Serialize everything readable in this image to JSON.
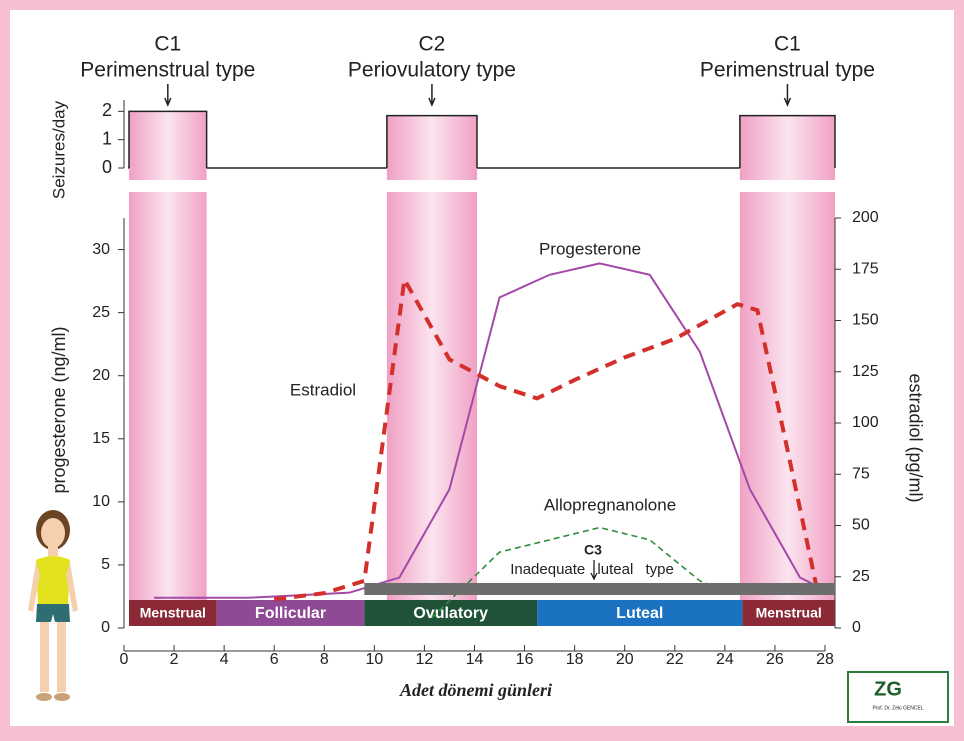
{
  "chart_data": [
    {
      "type": "step",
      "ylabel": "Seizures/day",
      "ylim": [
        0,
        2.4
      ],
      "yticks": [
        0,
        1,
        2
      ],
      "color": "#f3a3c6",
      "bands": [
        {
          "code": "C1",
          "label": "Perimenstrual type",
          "start": 0.2,
          "end": 3.3,
          "value": 2
        },
        {
          "code": "C2",
          "label": "Periovulatory type",
          "start": 10.5,
          "end": 14.1,
          "value": 1.85
        },
        {
          "code": "C1",
          "label": "Perimenstrual type",
          "start": 24.6,
          "end": 28.4,
          "value": 1.85
        }
      ]
    },
    {
      "type": "line",
      "xlabel": "Adet dönemi günleri",
      "ylabel": "progesterone (ng/ml)",
      "y2label": "estradiol (pg/ml)",
      "xlim": [
        0,
        28
      ],
      "xticks": [
        0,
        2,
        4,
        6,
        8,
        10,
        12,
        14,
        16,
        18,
        20,
        22,
        24,
        26,
        28
      ],
      "ylim": [
        0,
        32.5
      ],
      "yticks": [
        0,
        5,
        10,
        15,
        20,
        25,
        30
      ],
      "y2lim": [
        0,
        200
      ],
      "y2ticks": [
        0,
        25,
        50,
        75,
        100,
        125,
        150,
        175,
        200
      ],
      "series": [
        {
          "name": "Progesterone",
          "color": "#a34aa8",
          "dashed": false,
          "x": [
            1.2,
            3,
            5,
            7,
            9,
            11,
            13,
            15,
            17,
            19,
            21,
            23,
            25,
            27,
            28
          ],
          "values": [
            2.4,
            2.4,
            2.4,
            2.6,
            2.8,
            4,
            11,
            26.2,
            28,
            28.9,
            28,
            21.9,
            11,
            4,
            3
          ]
        },
        {
          "name": "Estradiol",
          "color": "#d3302c",
          "dashed": true,
          "axis": "y2",
          "x": [
            6,
            8,
            9.6,
            11.2,
            13,
            15,
            16.5,
            18,
            20,
            22,
            24.5,
            25.3,
            26.5,
            27.7
          ],
          "values": [
            14,
            17,
            23,
            170,
            131,
            118,
            112,
            121,
            132,
            141,
            158,
            155,
            87,
            18
          ]
        },
        {
          "name": "Allopregnanolone",
          "color": "#2f8c3c",
          "dashed": true,
          "axis": "y2",
          "x": [
            12.3,
            15,
            17,
            19,
            21,
            23,
            24
          ],
          "values": [
            5,
            37,
            43,
            49,
            43,
            23,
            18
          ]
        }
      ],
      "annotation": {
        "code": "C3",
        "label": "Inadequate luteal type",
        "start": 9.6,
        "end": 28.4
      },
      "phases": [
        {
          "name": "Menstrual",
          "start": 0.2,
          "end": 3.7,
          "color": "#8b2a36"
        },
        {
          "name": "Follicular",
          "start": 3.7,
          "end": 9.6,
          "color": "#8e4a94"
        },
        {
          "name": "Ovulatory",
          "start": 9.6,
          "end": 16.5,
          "color": "#1f5236"
        },
        {
          "name": "Luteal",
          "start": 16.5,
          "end": 24.7,
          "color": "#1a72c0"
        },
        {
          "name": "Menstrual",
          "start": 24.7,
          "end": 28.4,
          "color": "#8b2a36"
        }
      ]
    }
  ],
  "logo": {
    "mark": "ZG",
    "caption": "Prof. Dr. Zeki GENCEL"
  }
}
